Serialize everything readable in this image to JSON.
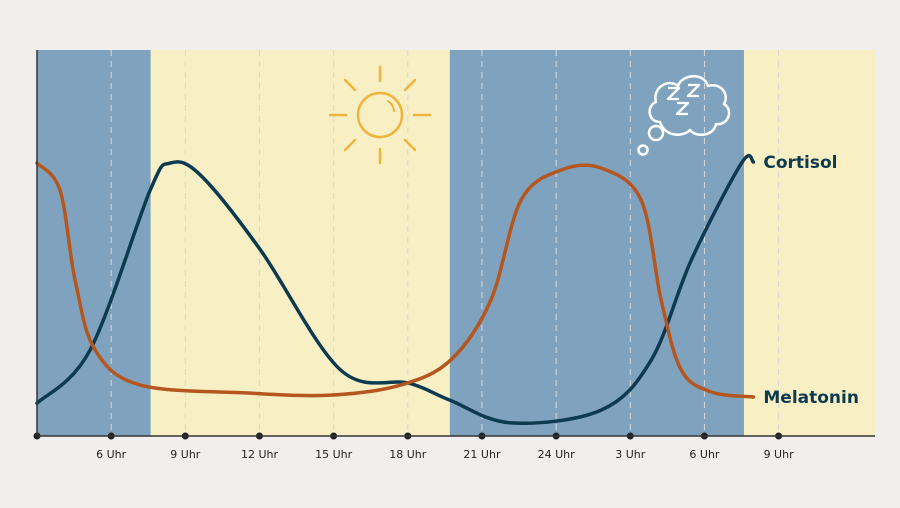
{
  "chart_data": {
    "type": "line",
    "title": "",
    "xlabel": "",
    "ylabel": "",
    "x_unit": "hour of day (continuing past midnight)",
    "xlim": [
      3,
      36.9
    ],
    "ylim": [
      0,
      100
    ],
    "ticks": [
      {
        "x": 3,
        "label": ""
      },
      {
        "x": 6,
        "label": "6 Uhr"
      },
      {
        "x": 9,
        "label": "9 Uhr"
      },
      {
        "x": 12,
        "label": "12 Uhr"
      },
      {
        "x": 15,
        "label": "15 Uhr"
      },
      {
        "x": 18,
        "label": "18 Uhr"
      },
      {
        "x": 21,
        "label": "21 Uhr"
      },
      {
        "x": 24,
        "label": "24 Uhr"
      },
      {
        "x": 27,
        "label": "3 Uhr"
      },
      {
        "x": 30,
        "label": "6 Uhr"
      },
      {
        "x": 33,
        "label": "9 Uhr"
      }
    ],
    "bands": [
      {
        "from": 3,
        "to": 7.6,
        "kind": "night",
        "color": "#7fa3bf"
      },
      {
        "from": 7.6,
        "to": 19.7,
        "kind": "day",
        "color": "#f8efc5"
      },
      {
        "from": 19.7,
        "to": 31.6,
        "kind": "night",
        "color": "#7fa3bf"
      },
      {
        "from": 31.6,
        "to": 36.9,
        "kind": "day",
        "color": "#f8efc5"
      }
    ],
    "icons": [
      "sun-icon",
      "sleep-cloud-icon"
    ],
    "series": [
      {
        "name": "Cortisol",
        "color": "#0d3a4f",
        "x": [
          3,
          5.15,
          7.58,
          8.39,
          9.61,
          12.04,
          15.28,
          18.04,
          19.7,
          22.17,
          25.82,
          27.85,
          29.47,
          31.5,
          31.98
        ],
        "y": [
          8.5,
          22.3,
          63.7,
          70.7,
          67.6,
          48.2,
          17.1,
          13.7,
          9.3,
          3.4,
          6.7,
          19.7,
          45.6,
          70.7,
          71.0
        ]
      },
      {
        "name": "Melatonin",
        "color": "#b5561f",
        "x": [
          3,
          3.93,
          4.54,
          5.35,
          7.18,
          11.63,
          14.88,
          17.71,
          19.74,
          21.36,
          22.58,
          24.2,
          25.82,
          27.44,
          28.25,
          29.06,
          30.28,
          31.98
        ],
        "y": [
          70.7,
          63.7,
          40.4,
          22.3,
          13.2,
          11.1,
          10.6,
          13.2,
          19.7,
          35.2,
          61.1,
          68.9,
          69.4,
          61.1,
          35.2,
          17.1,
          11.4,
          10.1
        ]
      }
    ],
    "grid": "vertical dashed at labeled ticks",
    "legend": "inline labels at right end of lines"
  }
}
